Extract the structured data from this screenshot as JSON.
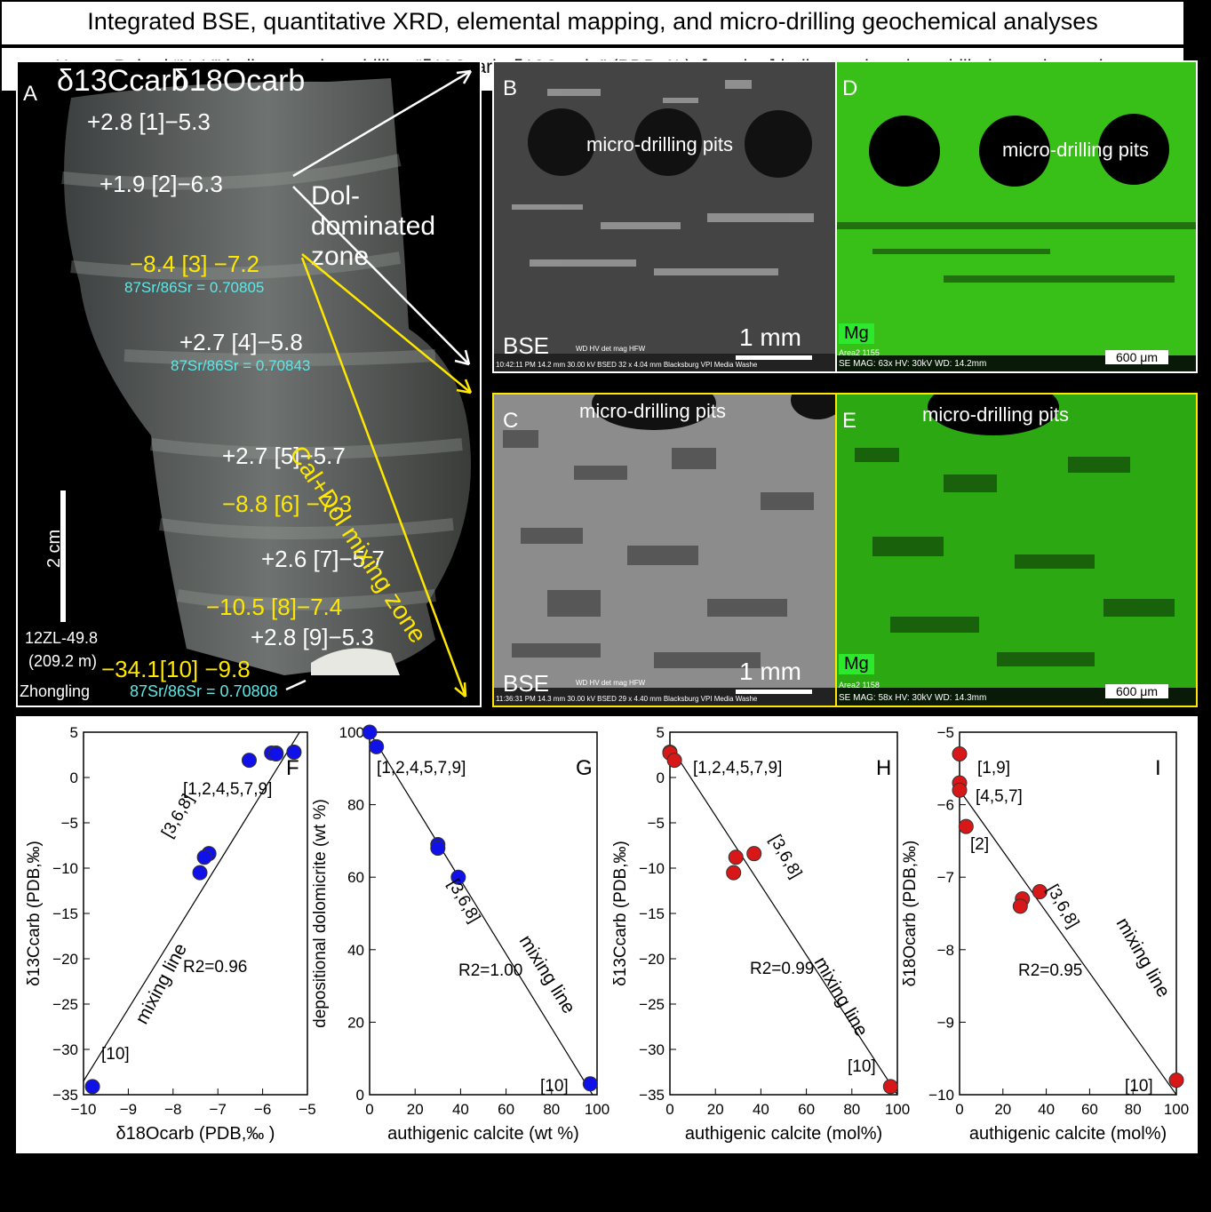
{
  "title": "Integrated BSE, quantitative XRD, elemental mapping, and micro-drilling geochemical analyses",
  "notes": "Notes: Paired “X, Y” indicates micro-drilling “δ13Ccarb, δ18Ocarb ” (PDB, ‰); [number] indicates the micro-drilled sample number.",
  "panelA": {
    "letter": "A",
    "header_c": "δ13Ccarb",
    "header_o": "δ18Ocarb",
    "samples": [
      {
        "text": "+2.8 [1]−5.3"
      },
      {
        "text": "+1.9 [2]−6.3"
      },
      {
        "text": "−8.4  [3] −7.2"
      },
      {
        "text": "+2.7 [4]−5.8"
      },
      {
        "text": "+2.7  [5]−5.7"
      },
      {
        "text": "−8.8  [6] −7.3"
      },
      {
        "text": "+2.6  [7]−5.7"
      },
      {
        "text": "−10.5 [8]−7.4"
      },
      {
        "text": "+2.8 [9]−5.3"
      },
      {
        "text": "−34.1[10] −9.8"
      }
    ],
    "sr": [
      "87Sr/86Sr = 0.70805",
      "87Sr/86Sr = 0.70843",
      "87Sr/86Sr = 0.70808"
    ],
    "scale": "2 cm",
    "sample_id": "12ZL-49.8",
    "depth": "(209.2 m)",
    "location": "Zhongling",
    "dol_zone": "Dol-dominated zone",
    "mix_zone": "Cal+Dol mixing zone"
  },
  "panelB": {
    "letter": "B",
    "pits": "micro-drilling pits",
    "mode": "BSE",
    "scale": "1 mm",
    "meta": "10:42:11 PM  14.2 mm  30.00 kV  BSED  32 x  4.04 mm Blacksburg VPI Media Washe",
    "meta_head": "WD   HV   det   mag   HFW"
  },
  "panelC": {
    "letter": "C",
    "pits": "micro-drilling pits",
    "mode": "BSE",
    "scale": "1 mm",
    "meta": "11:36:31 PM  14.3 mm  30.00 kV  BSED  29 x  4.40 mm Blacksburg VPI Media Washe",
    "meta_head": "WD   HV   det   mag   HFW"
  },
  "panelD": {
    "letter": "D",
    "pits": "micro-drilling pits",
    "element": "Mg",
    "scale": "600 μm",
    "area": "Area2 1155",
    "meta": "SE  MAG: 63x  HV: 30kV  WD: 14.2mm"
  },
  "panelE": {
    "letter": "E",
    "pits": "micro-drilling pits",
    "element": "Mg",
    "scale": "600 μm",
    "area": "Area2 1158",
    "meta": "SE  MAG: 58x  HV: 30kV  WD: 14.3mm"
  },
  "colors": {
    "blue": "#1010e8",
    "red": "#d81818",
    "yellow": "#ffe800",
    "cyan": "#5ee8e8",
    "green": "#2ee82e"
  },
  "chart_data": [
    {
      "panel": "F",
      "type": "scatter",
      "xlabel": "δ18Ocarb (PDB,‰ )",
      "ylabel": "δ13Ccarb (PDB,‰)",
      "xlim": [
        -10,
        -5
      ],
      "ylim": [
        -35,
        5
      ],
      "xticks": [
        -10,
        -9,
        -8,
        -7,
        -6,
        -5
      ],
      "yticks": [
        5,
        0,
        -5,
        -10,
        -15,
        -20,
        -25,
        -30,
        -35
      ],
      "color": "#1010e8",
      "points": [
        [
          -5.3,
          2.8
        ],
        [
          -6.3,
          1.9
        ],
        [
          -7.2,
          -8.4
        ],
        [
          -5.8,
          2.7
        ],
        [
          -5.7,
          2.7
        ],
        [
          -7.3,
          -8.8
        ],
        [
          -5.7,
          2.6
        ],
        [
          -7.4,
          -10.5
        ],
        [
          -5.3,
          2.8
        ],
        [
          -9.8,
          -34.1
        ]
      ],
      "line": [
        [
          -10,
          -33.5
        ],
        [
          -5.05,
          6
        ]
      ],
      "r2": "R2=0.96",
      "line_label": "mixing line",
      "labels": [
        {
          "text": "[1,2,4,5,7,9]"
        },
        {
          "text": "[3,6,8]"
        },
        {
          "text": "[10]"
        }
      ]
    },
    {
      "panel": "G",
      "type": "scatter",
      "xlabel": "authigenic calcite (wt %)",
      "ylabel": "depositional dolomicrite  (wt %)",
      "xlim": [
        0,
        100
      ],
      "ylim": [
        0,
        100
      ],
      "xticks": [
        0,
        20,
        40,
        60,
        80,
        100
      ],
      "yticks": [
        100,
        80,
        60,
        40,
        20,
        0
      ],
      "color": "#1010e8",
      "points": [
        [
          0,
          100
        ],
        [
          3,
          96
        ],
        [
          30,
          69
        ],
        [
          30,
          68
        ],
        [
          39,
          60
        ],
        [
          97,
          3
        ]
      ],
      "line": [
        [
          0,
          100
        ],
        [
          100,
          -2
        ]
      ],
      "r2": "R2=1.00",
      "line_label": "mixing line",
      "labels": [
        {
          "text": "[1,2,4,5,7,9]"
        },
        {
          "text": "[3,6,8]"
        },
        {
          "text": "[10]"
        }
      ]
    },
    {
      "panel": "H",
      "type": "scatter",
      "xlabel": "authigenic calcite (mol%)",
      "ylabel": "δ13Ccarb (PDB,‰)",
      "xlim": [
        0,
        100
      ],
      "ylim": [
        -35,
        5
      ],
      "xticks": [
        0,
        20,
        40,
        60,
        80,
        100
      ],
      "yticks": [
        5,
        0,
        -5,
        -10,
        -15,
        -20,
        -25,
        -30,
        -35
      ],
      "color": "#d81818",
      "points": [
        [
          0,
          2.8
        ],
        [
          0,
          2.7
        ],
        [
          2,
          1.9
        ],
        [
          29,
          -8.8
        ],
        [
          28,
          -10.5
        ],
        [
          37,
          -8.4
        ],
        [
          97,
          -34.1
        ]
      ],
      "line": [
        [
          0,
          3.5
        ],
        [
          100,
          -35
        ]
      ],
      "r2": "R2=0.99",
      "line_label": "mixing line",
      "labels": [
        {
          "text": "[1,2,4,5,7,9]"
        },
        {
          "text": "[3,6,8]"
        },
        {
          "text": "[10]"
        }
      ]
    },
    {
      "panel": "I",
      "type": "scatter",
      "xlabel": "authigenic calcite (mol%)",
      "ylabel": "δ18Ocarb (PDB,‰)",
      "xlim": [
        0,
        100
      ],
      "ylim": [
        -10,
        -5
      ],
      "xticks": [
        0,
        20,
        40,
        60,
        80,
        100
      ],
      "yticks": [
        -5,
        -6,
        -7,
        -8,
        -9,
        -10
      ],
      "color": "#d81818",
      "points": [
        [
          0,
          -5.3
        ],
        [
          0,
          -5.7
        ],
        [
          0,
          -5.8
        ],
        [
          3,
          -6.3
        ],
        [
          29,
          -7.3
        ],
        [
          28,
          -7.4
        ],
        [
          37,
          -7.2
        ],
        [
          100,
          -9.8
        ]
      ],
      "line": [
        [
          0,
          -5.8
        ],
        [
          100,
          -10
        ]
      ],
      "r2": "R2=0.95",
      "line_label": "mixing line",
      "labels": [
        {
          "text": "[1,9]"
        },
        {
          "text": "[4,5,7]"
        },
        {
          "text": "[2]"
        },
        {
          "text": "[3,6,8]"
        },
        {
          "text": "[10]"
        }
      ]
    }
  ]
}
